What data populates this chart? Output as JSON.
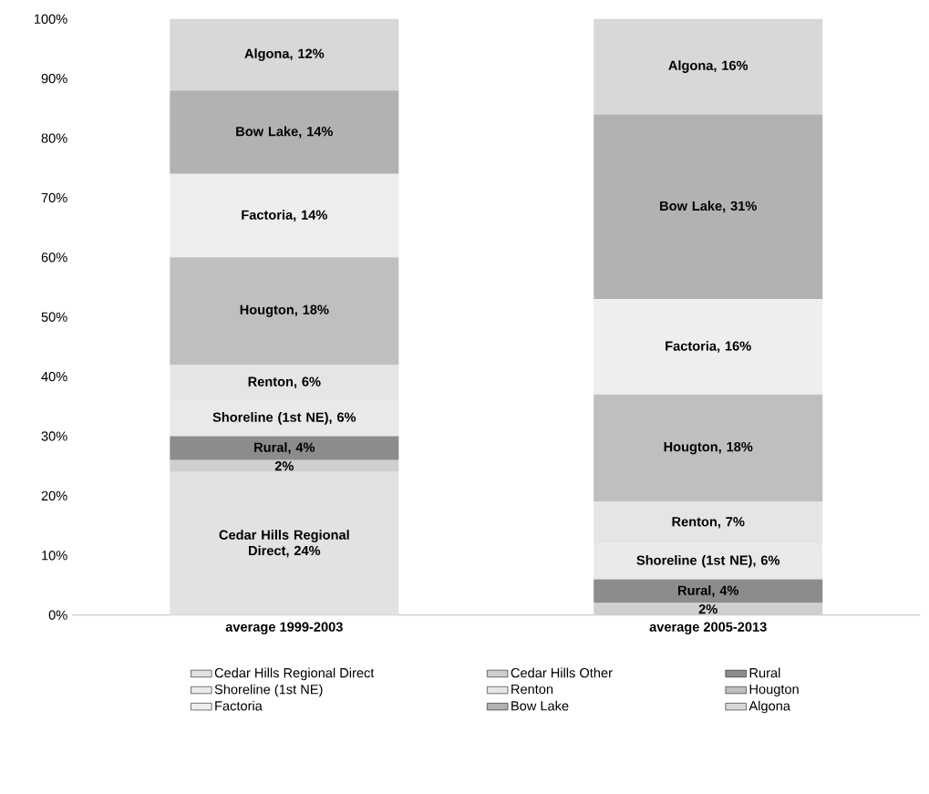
{
  "chart_data": {
    "type": "bar",
    "stacked": true,
    "categories": [
      "average 1999-2003",
      "average 2005-2013"
    ],
    "ylim": [
      0,
      100
    ],
    "yticks": [
      {
        "value": 0,
        "label": "0%"
      },
      {
        "value": 10,
        "label": "10%"
      },
      {
        "value": 20,
        "label": "20%"
      },
      {
        "value": 30,
        "label": "30%"
      },
      {
        "value": 40,
        "label": "40%"
      },
      {
        "value": 50,
        "label": "50%"
      },
      {
        "value": 60,
        "label": "60%"
      },
      {
        "value": 70,
        "label": "70%"
      },
      {
        "value": 80,
        "label": "80%"
      },
      {
        "value": 90,
        "label": "90%"
      },
      {
        "value": 100,
        "label": "100%"
      }
    ],
    "legend": "bottom",
    "grid": false,
    "series": [
      {
        "name": "Cedar Hills Regional Direct",
        "color": "#e2e2e2",
        "values": [
          24,
          0
        ],
        "value_labels": [
          "Cedar Hills Regional Direct, 24%",
          null
        ]
      },
      {
        "name": "Cedar Hills Other",
        "color": "#cfcfcf",
        "values": [
          2,
          2
        ],
        "value_labels": [
          "2%",
          "2%"
        ]
      },
      {
        "name": "Rural",
        "color": "#8c8c8c",
        "values": [
          4,
          4
        ],
        "value_labels": [
          "Rural, 4%",
          "Rural, 4%"
        ]
      },
      {
        "name": "Shoreline (1st NE)",
        "color": "#e9e9e9",
        "values": [
          6,
          6
        ],
        "value_labels": [
          "Shoreline (1st NE), 6%",
          "Shoreline (1st NE), 6%"
        ]
      },
      {
        "name": "Renton",
        "color": "#e5e5e5",
        "values": [
          6,
          7
        ],
        "value_labels": [
          "Renton, 6%",
          "Renton, 7%"
        ]
      },
      {
        "name": "Hougton",
        "color": "#bfbfbf",
        "values": [
          18,
          18
        ],
        "value_labels": [
          "Hougton, 18%",
          "Hougton, 18%"
        ]
      },
      {
        "name": "Factoria",
        "color": "#eeeeee",
        "values": [
          14,
          16
        ],
        "value_labels": [
          "Factoria, 14%",
          "Factoria, 16%"
        ]
      },
      {
        "name": "Bow Lake",
        "color": "#b2b2b2",
        "values": [
          14,
          31
        ],
        "value_labels": [
          "Bow Lake, 14%",
          "Bow Lake, 31%"
        ]
      },
      {
        "name": "Algona",
        "color": "#d8d8d8",
        "values": [
          12,
          16
        ],
        "value_labels": [
          "Algona, 12%",
          "Algona, 16%"
        ]
      }
    ]
  }
}
